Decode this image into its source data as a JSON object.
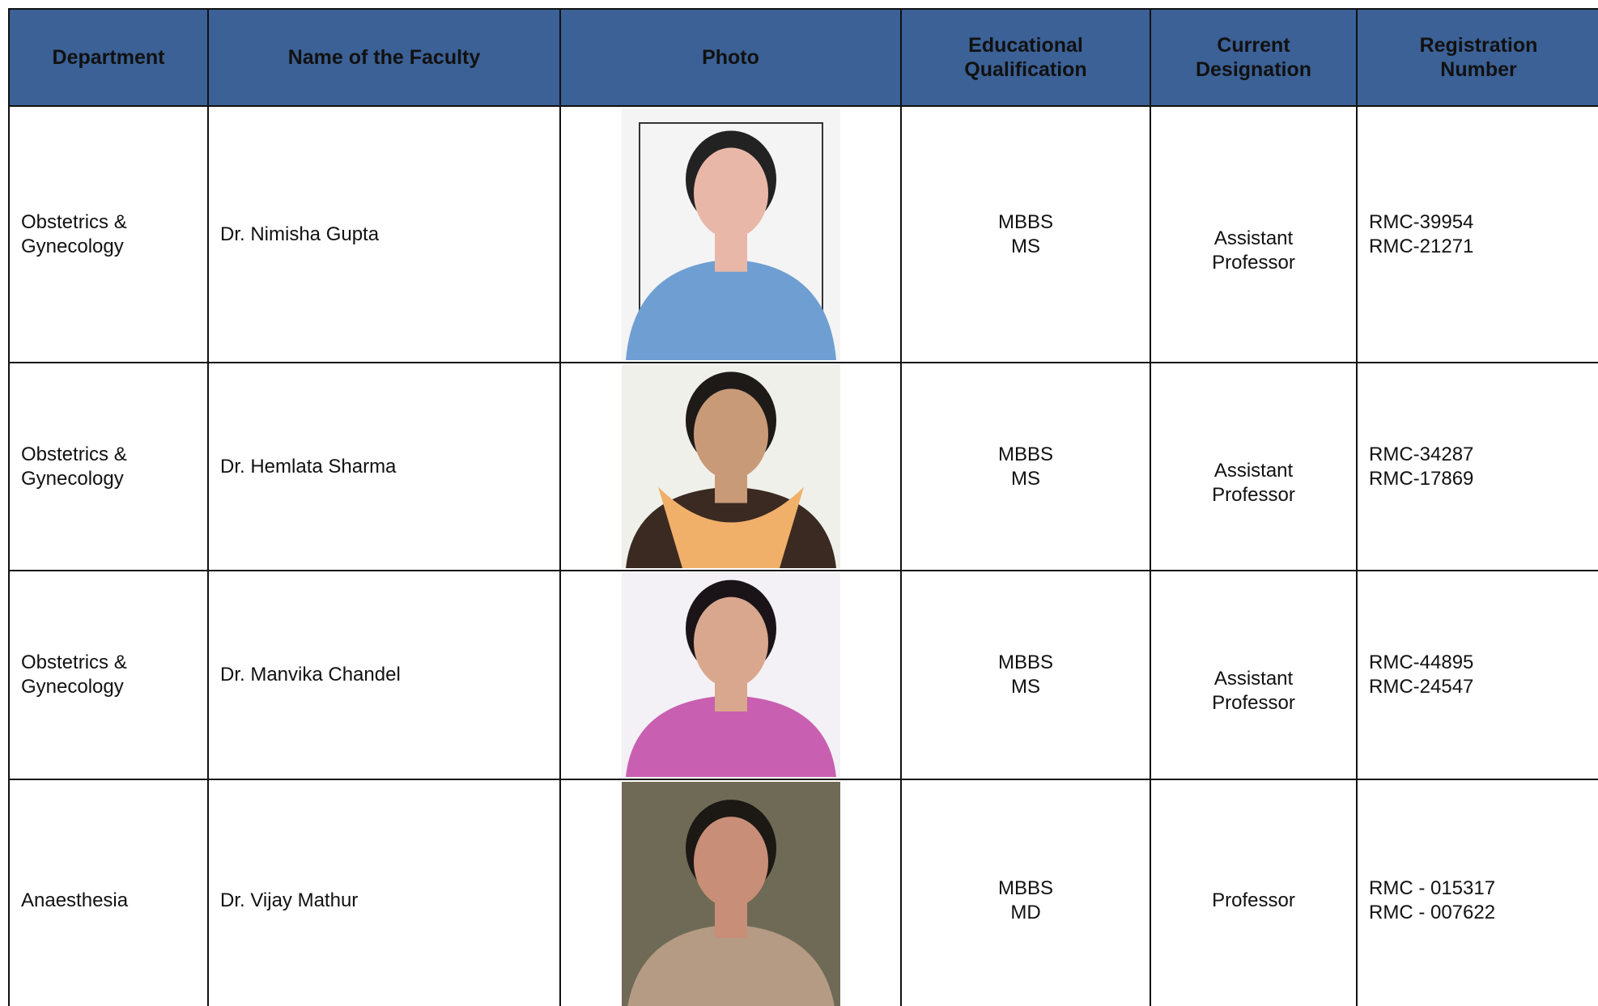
{
  "table": {
    "headers": [
      "Department",
      "Name of the Faculty",
      "Photo",
      "Educational Qualification",
      "Current Designation",
      "Registration Number"
    ],
    "rows": [
      {
        "department": "Obstetrics & Gynecology",
        "name": "Dr. Nimisha Gupta",
        "qualification": [
          "MBBS",
          "MS"
        ],
        "designation": [
          "Assistant",
          "Professor"
        ],
        "registration": [
          "RMC-39954",
          "RMC-21271"
        ]
      },
      {
        "department": "Obstetrics & Gynecology",
        "name": "Dr. Hemlata Sharma",
        "qualification": [
          "MBBS",
          "MS"
        ],
        "designation": [
          "Assistant",
          "Professor"
        ],
        "registration": [
          "RMC-34287",
          "RMC-17869"
        ]
      },
      {
        "department": "Obstetrics & Gynecology",
        "name": "Dr. Manvika Chandel",
        "qualification": [
          "MBBS",
          "MS"
        ],
        "designation": [
          "Assistant",
          "Professor"
        ],
        "registration": [
          "RMC-44895",
          "RMC-24547"
        ]
      },
      {
        "department": "Anaesthesia",
        "name": "Dr. Vijay Mathur",
        "qualification": [
          "MBBS",
          "MD"
        ],
        "designation": [
          "Professor"
        ],
        "registration": [
          "RMC - 015317",
          "RMC - 007622"
        ]
      }
    ]
  }
}
